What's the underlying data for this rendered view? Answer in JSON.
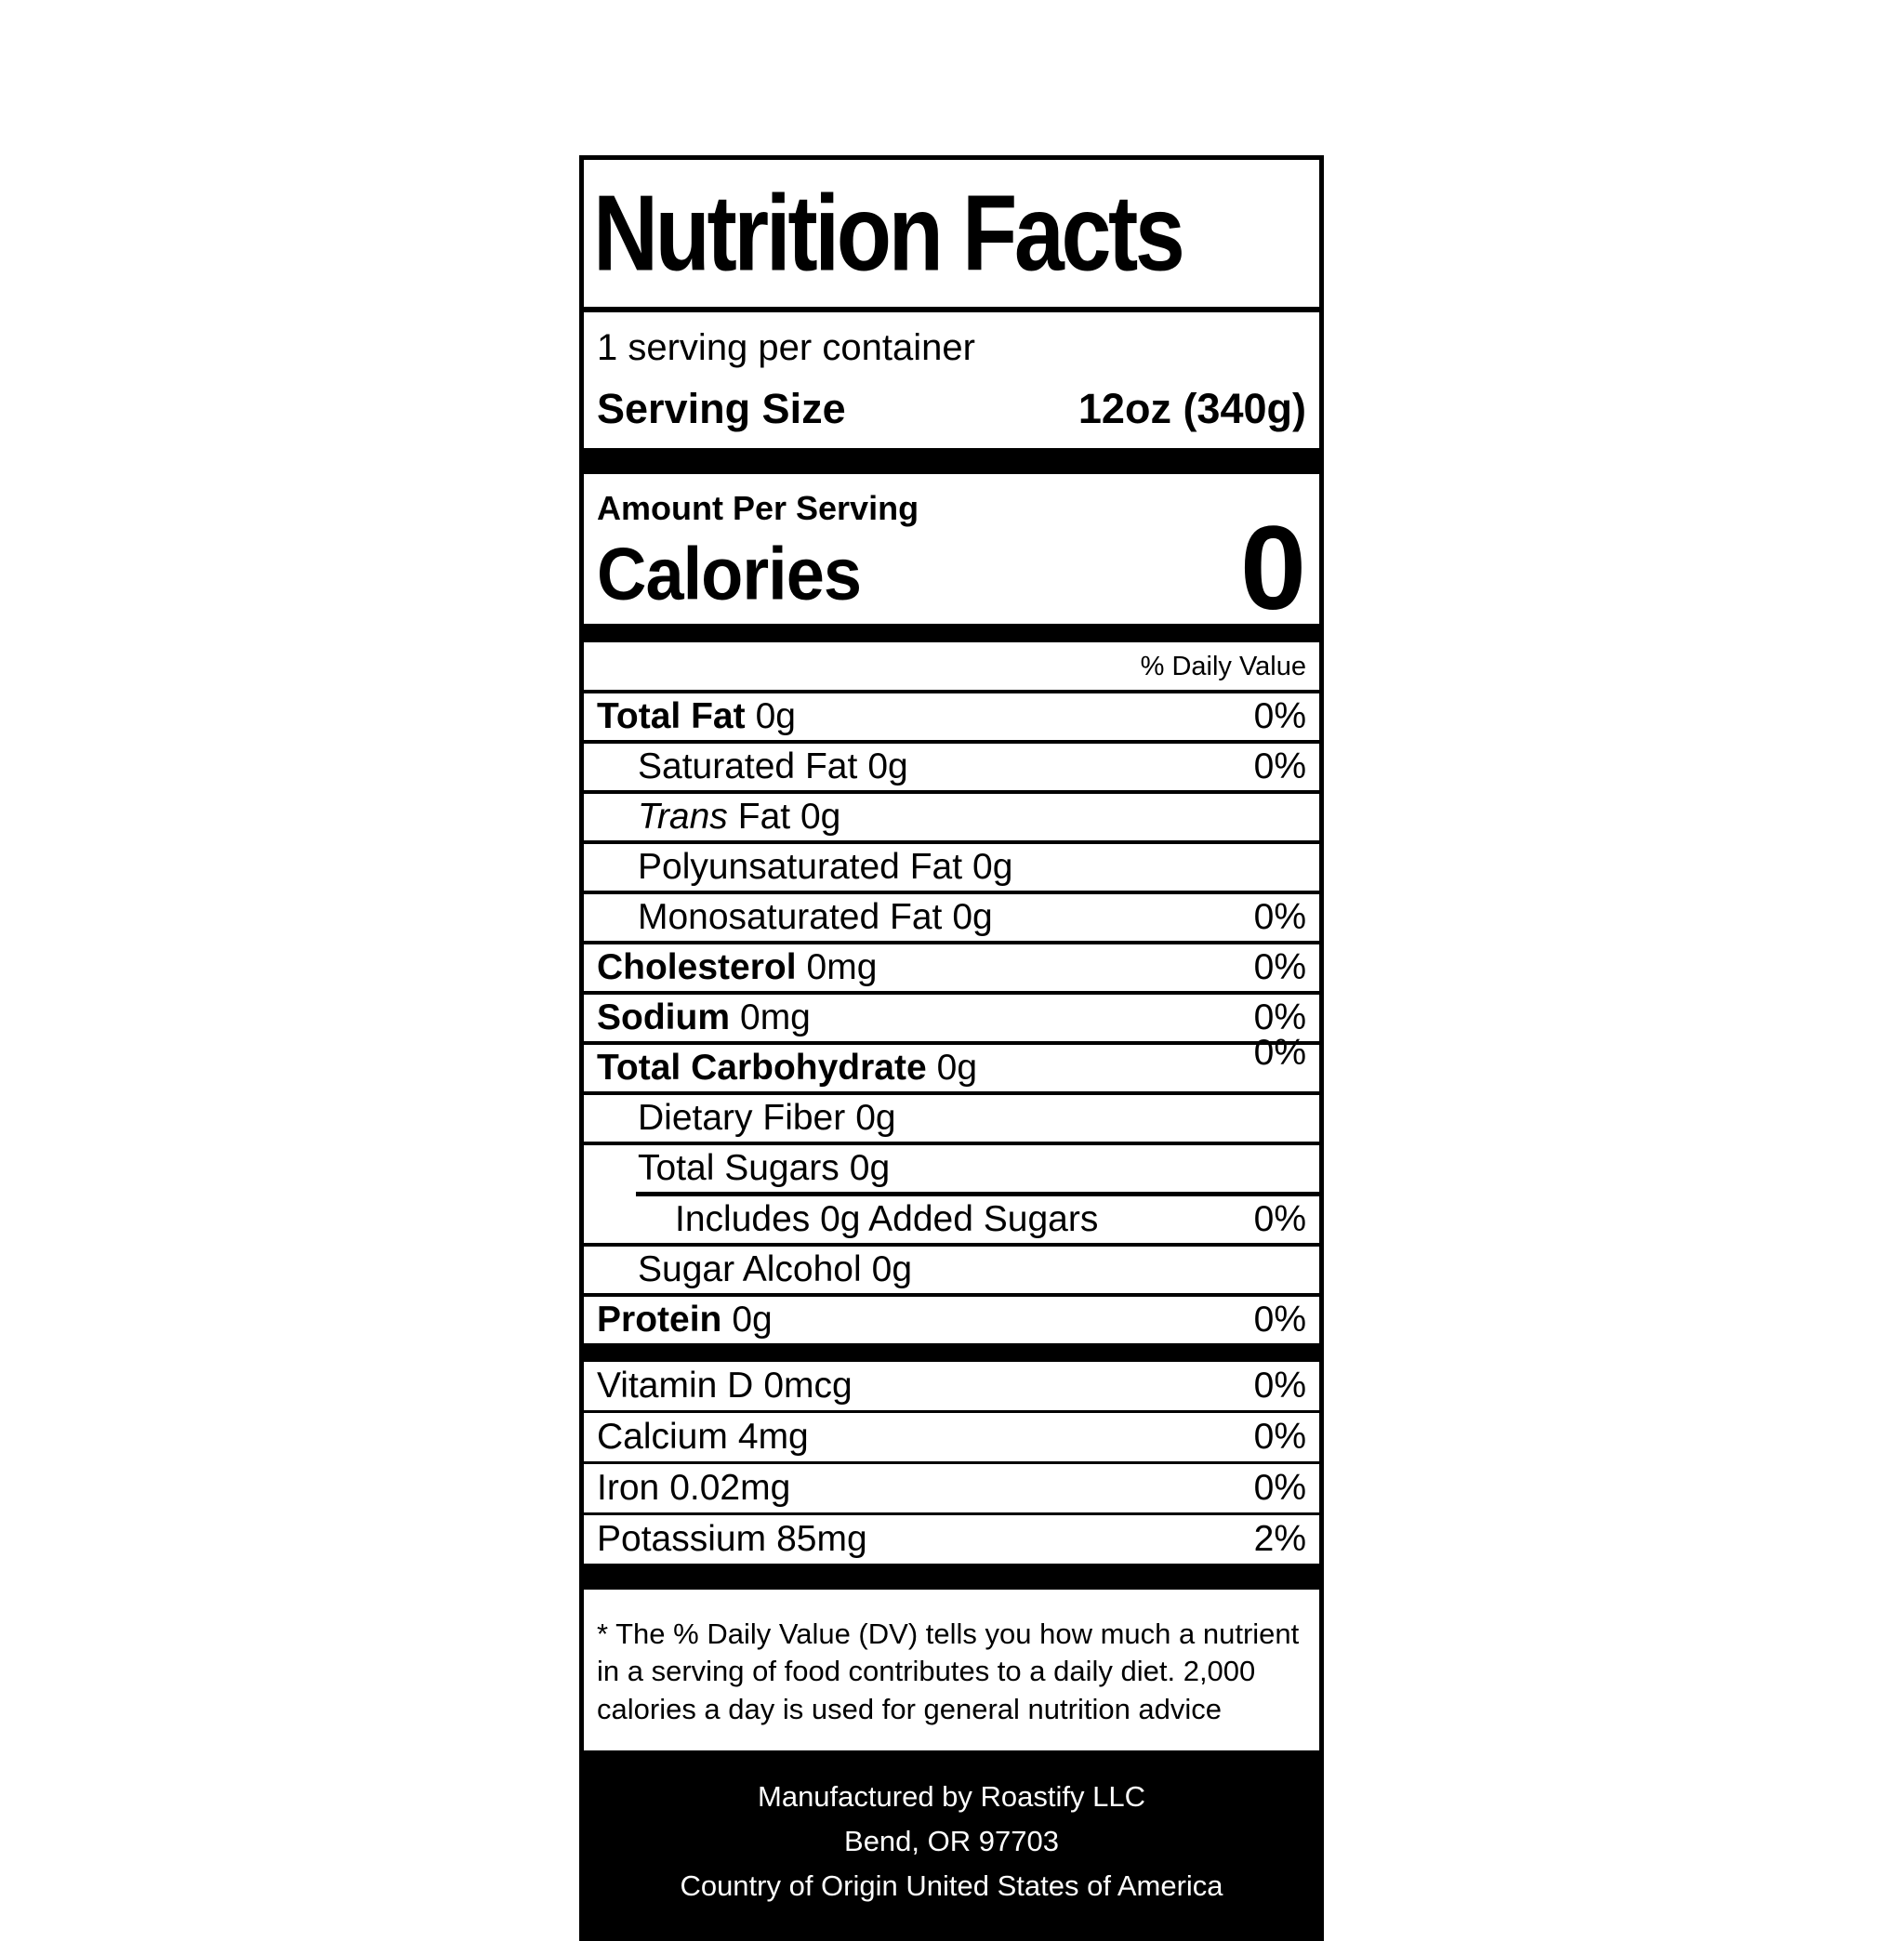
{
  "colors": {
    "ink": "#000000",
    "paper": "#ffffff"
  },
  "label": {
    "title": "Nutrition Facts",
    "servings_per_container": "1 serving per container",
    "serving_size_label": "Serving Size",
    "serving_size_value": "12oz (340g)",
    "amount_per_serving": "Amount Per Serving",
    "calories_label": "Calories",
    "calories_value": "0",
    "daily_value_header": "% Daily Value",
    "nutrients": [
      {
        "name": "Total Fat",
        "amount": "0g",
        "dv": "0%"
      },
      {
        "name": "Saturated Fat",
        "amount": "0g",
        "dv": "0%"
      },
      {
        "name": "Trans",
        "amount": "Fat 0g",
        "dv": ""
      },
      {
        "name": "Polyunsaturated Fat",
        "amount": "0g",
        "dv": ""
      },
      {
        "name": "Monosaturated Fat",
        "amount": "0g",
        "dv": "0%"
      },
      {
        "name": "Cholesterol",
        "amount": "0mg",
        "dv": "0%"
      },
      {
        "name": "Sodium",
        "amount": "0mg",
        "dv": "0%"
      },
      {
        "name": "Total Carbohydrate",
        "amount": "0g",
        "dv": "0%"
      },
      {
        "name": "Dietary Fiber",
        "amount": "0g",
        "dv": ""
      },
      {
        "name": "Total Sugars",
        "amount": "0g",
        "dv": ""
      },
      {
        "name": "Includes 0g Added Sugars",
        "amount": "",
        "dv": "0%"
      },
      {
        "name": "Sugar Alcohol",
        "amount": "0g",
        "dv": ""
      },
      {
        "name": "Protein",
        "amount": "0g",
        "dv": "0%"
      }
    ],
    "vitamins": [
      {
        "name": "Vitamin D",
        "amount": "0mcg",
        "dv": "0%"
      },
      {
        "name": "Calcium",
        "amount": "4mg",
        "dv": "0%"
      },
      {
        "name": "Iron",
        "amount": "0.02mg",
        "dv": "0%"
      },
      {
        "name": "Potassium",
        "amount": "85mg",
        "dv": "2%"
      }
    ],
    "footnote": "* The % Daily Value (DV) tells you how much a nutrient in a serving of food contributes to a daily diet. 2,000 calories a day is used for general nutrition advice",
    "footer": [
      "Manufactured by Roastify LLC",
      "Bend, OR 97703",
      "Country of Origin United States of America"
    ]
  }
}
